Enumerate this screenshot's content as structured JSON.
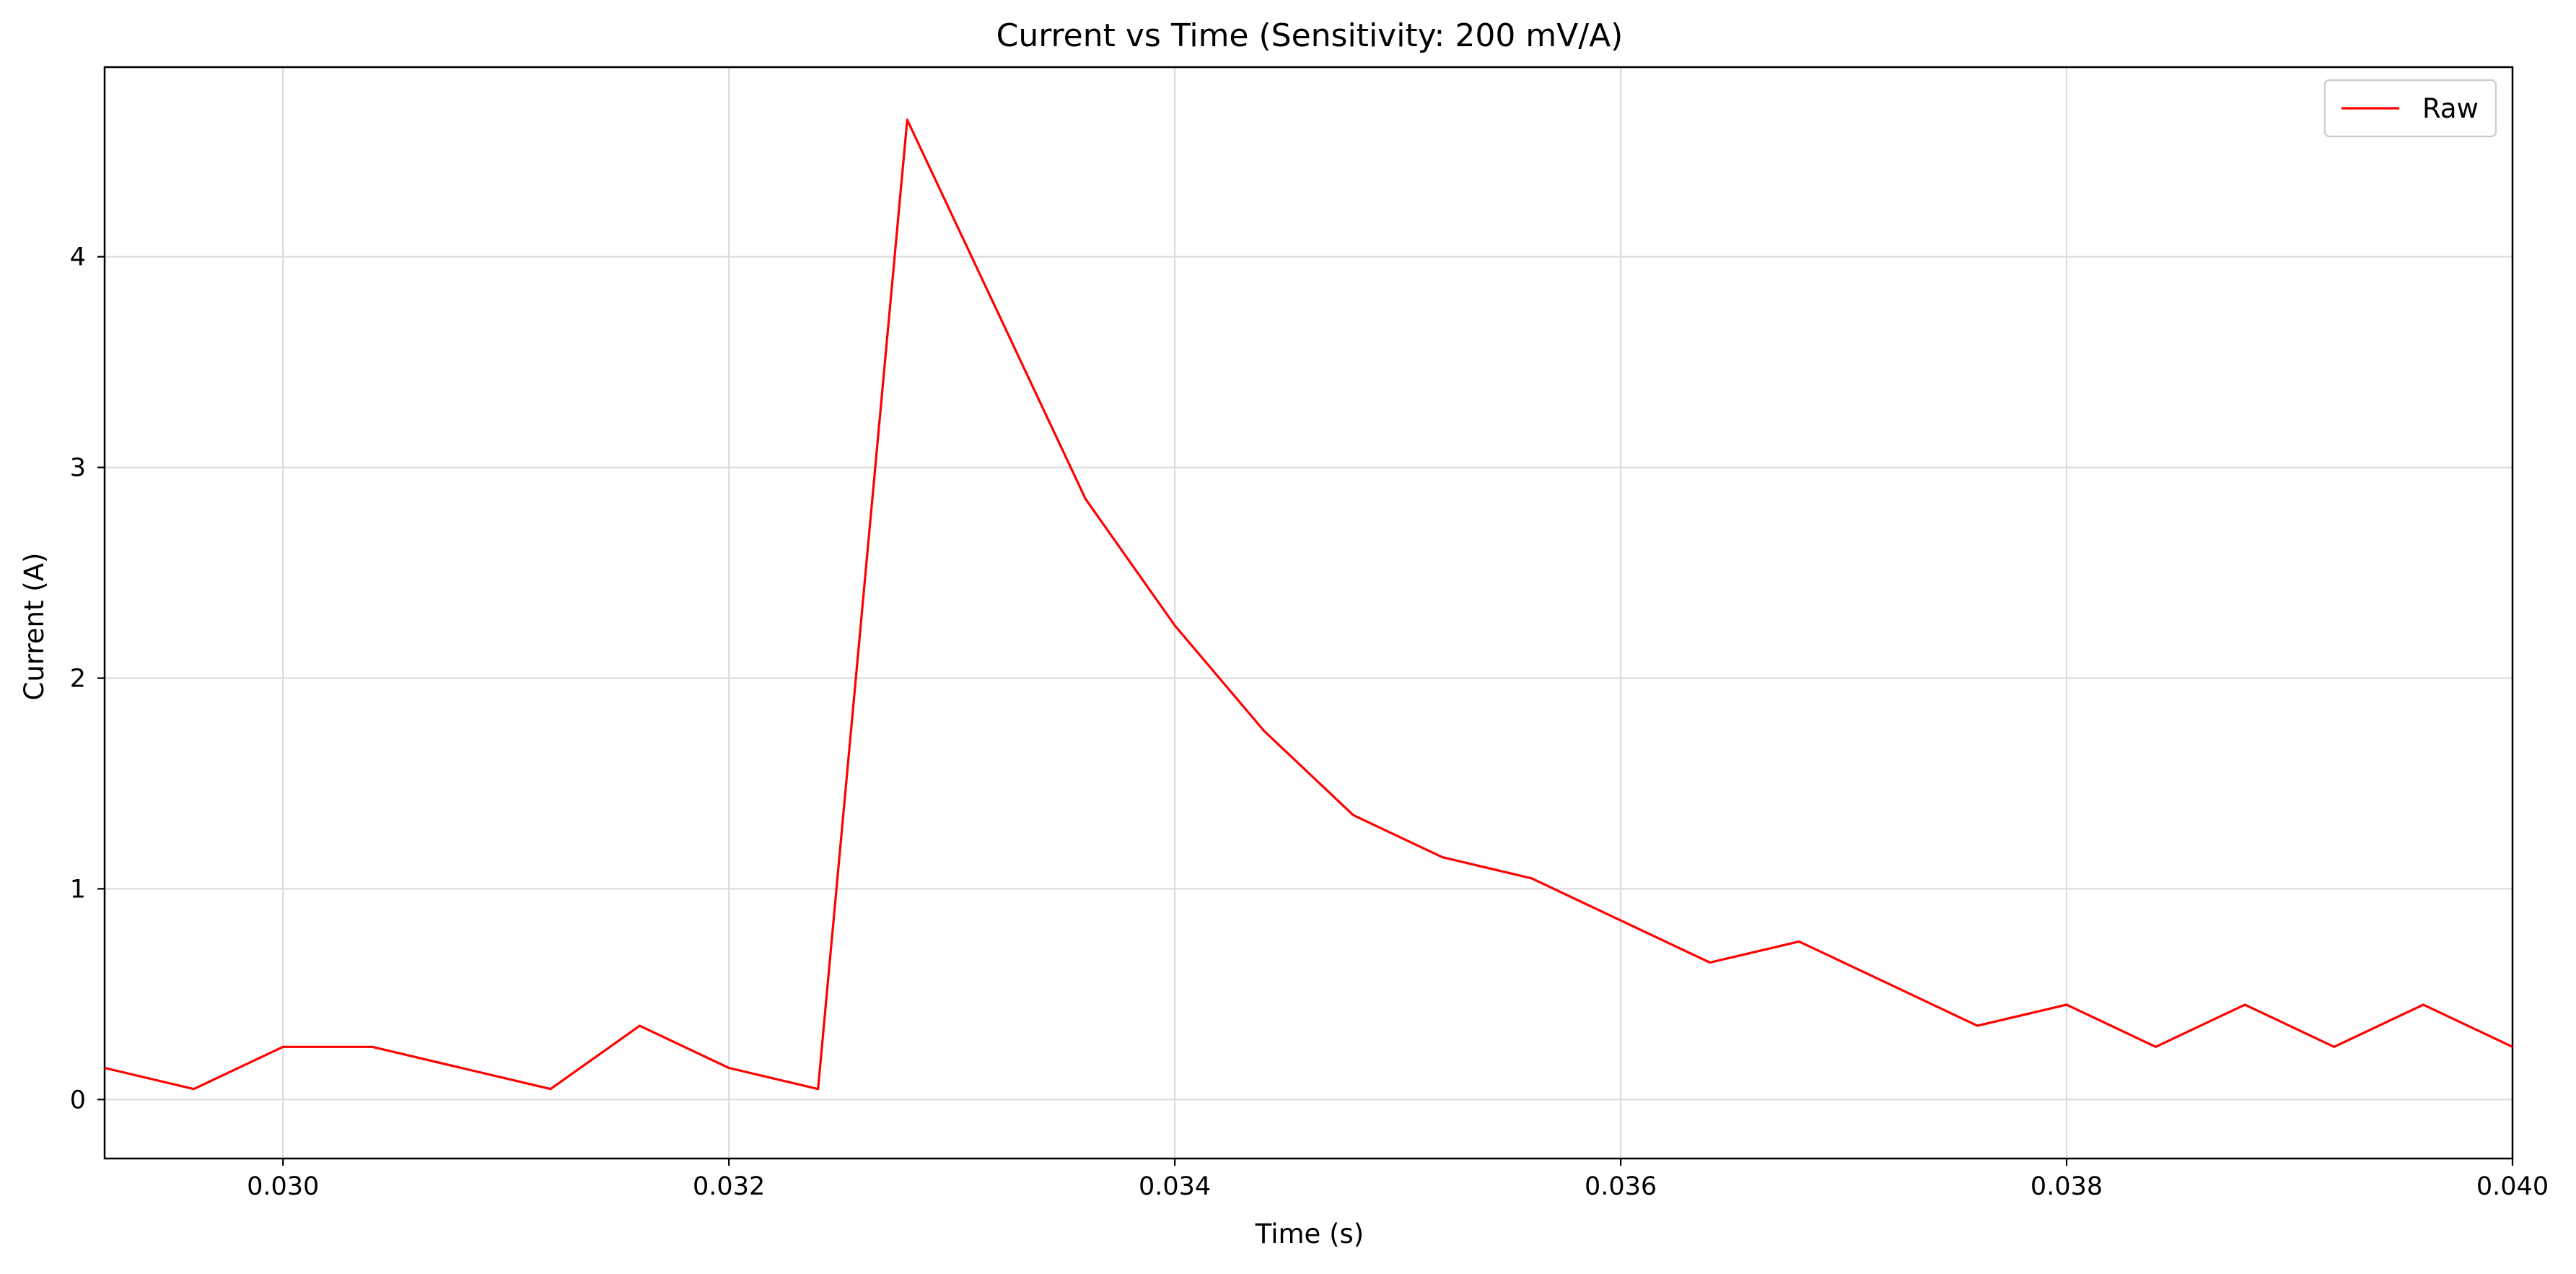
{
  "chart_data": {
    "type": "line",
    "title": "Current vs Time (Sensitivity: 200 mV/A)",
    "xlabel": "Time (s)",
    "ylabel": "Current (A)",
    "xlim": [
      0.0292,
      0.04
    ],
    "ylim": [
      -0.28,
      4.9
    ],
    "xticks": [
      0.03,
      0.032,
      0.034,
      0.036,
      0.038,
      0.04
    ],
    "xtick_labels": [
      "0.030",
      "0.032",
      "0.034",
      "0.036",
      "0.038",
      "0.040"
    ],
    "yticks": [
      0,
      1,
      2,
      3,
      4
    ],
    "ytick_labels": [
      "0",
      "1",
      "2",
      "3",
      "4"
    ],
    "grid": true,
    "legend_position": "top-right",
    "series": [
      {
        "name": "Raw",
        "color": "#ff0000",
        "x": [
          0.0292,
          0.0296,
          0.03,
          0.0304,
          0.0308,
          0.0312,
          0.0316,
          0.032,
          0.0324,
          0.0328,
          0.0332,
          0.0336,
          0.034,
          0.0344,
          0.0348,
          0.0352,
          0.0356,
          0.036,
          0.0364,
          0.0368,
          0.0372,
          0.0376,
          0.038,
          0.0384,
          0.0388,
          0.0392,
          0.0396,
          0.04
        ],
        "y": [
          0.15,
          0.05,
          0.25,
          0.25,
          0.15,
          0.05,
          0.35,
          0.15,
          0.05,
          4.65,
          3.75,
          2.85,
          2.25,
          1.75,
          1.35,
          1.15,
          1.05,
          0.85,
          0.65,
          0.75,
          0.55,
          0.35,
          0.45,
          0.25,
          0.45,
          0.25,
          0.45,
          0.25
        ]
      }
    ]
  }
}
